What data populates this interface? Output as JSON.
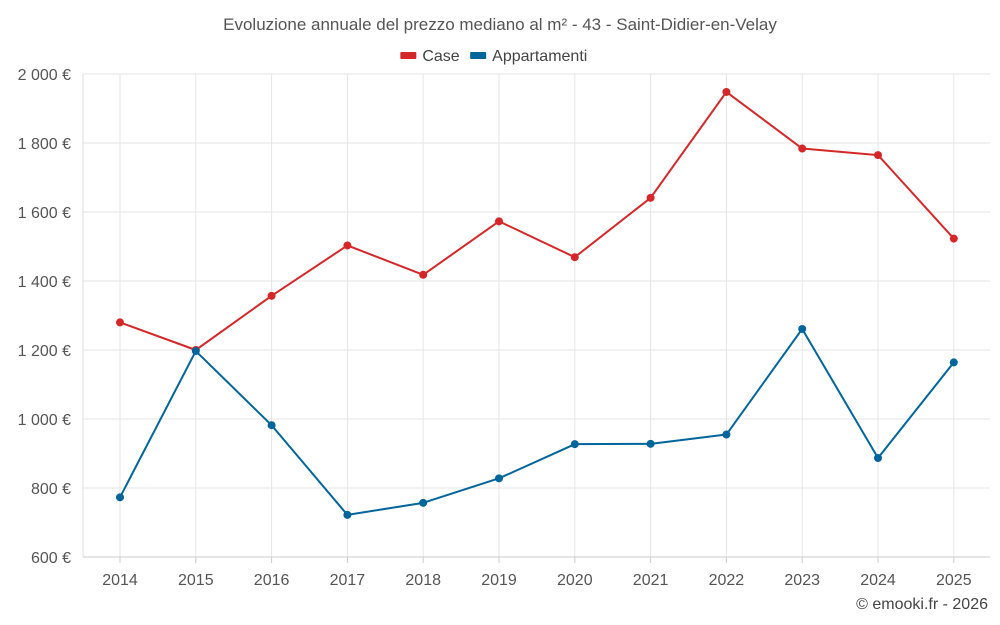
{
  "chart_data": {
    "type": "line",
    "title": "Evoluzione annuale del prezzo mediano al m² - 43 - Saint-Didier-en-Velay",
    "categories": [
      "2014",
      "2015",
      "2016",
      "2017",
      "2018",
      "2019",
      "2020",
      "2021",
      "2022",
      "2023",
      "2024",
      "2025"
    ],
    "series": [
      {
        "name": "Case",
        "color": "#d62728",
        "values": [
          1280,
          1200,
          1357,
          1503,
          1418,
          1573,
          1469,
          1641,
          1948,
          1784,
          1765,
          1523
        ]
      },
      {
        "name": "Appartamenti",
        "color": "#00659b",
        "values": [
          773,
          1197,
          982,
          722,
          757,
          828,
          927,
          928,
          955,
          1261,
          887,
          1164
        ]
      }
    ],
    "y_ticks": [
      600,
      800,
      1000,
      1200,
      1400,
      1600,
      1800,
      2000
    ],
    "y_tick_labels": [
      "600 €",
      "800 €",
      "1 000 €",
      "1 200 €",
      "1 400 €",
      "1 600 €",
      "1 800 €",
      "2 000 €"
    ],
    "ylim": [
      600,
      2000
    ],
    "xlabel": "",
    "ylabel": "",
    "legend_position": "top-center",
    "grid": true
  },
  "credit": "© emooki.fr - 2026"
}
